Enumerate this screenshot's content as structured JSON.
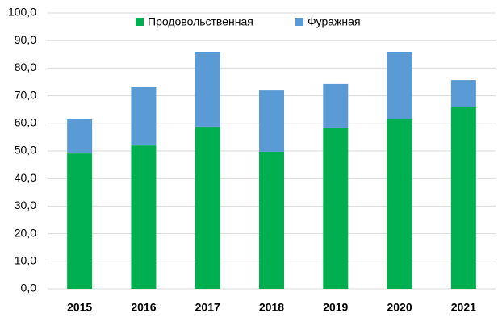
{
  "chart_data": {
    "type": "stacked_bar",
    "categories": [
      "2015",
      "2016",
      "2017",
      "2018",
      "2019",
      "2020",
      "2021"
    ],
    "series": [
      {
        "name": "Продовольственная",
        "color": "#00b050",
        "values": [
          49.1,
          52.0,
          58.8,
          49.7,
          58.2,
          61.4,
          65.8
        ]
      },
      {
        "name": "Фуражная",
        "color": "#5b9bd5",
        "values": [
          12.3,
          21.1,
          26.9,
          22.2,
          16.1,
          24.3,
          9.9
        ]
      }
    ],
    "ylim": [
      0,
      100
    ],
    "yticks": [
      {
        "value": 0,
        "label": "0,0"
      },
      {
        "value": 10,
        "label": "10,0"
      },
      {
        "value": 20,
        "label": "20,0"
      },
      {
        "value": 30,
        "label": "30,0"
      },
      {
        "value": 40,
        "label": "40,0"
      },
      {
        "value": 50,
        "label": "50,0"
      },
      {
        "value": 60,
        "label": "60,0"
      },
      {
        "value": 70,
        "label": "70,0"
      },
      {
        "value": 80,
        "label": "80,0"
      },
      {
        "value": 90,
        "label": "90,0"
      },
      {
        "value": 100,
        "label": "100,0"
      }
    ],
    "grid": true,
    "legend": "top"
  }
}
